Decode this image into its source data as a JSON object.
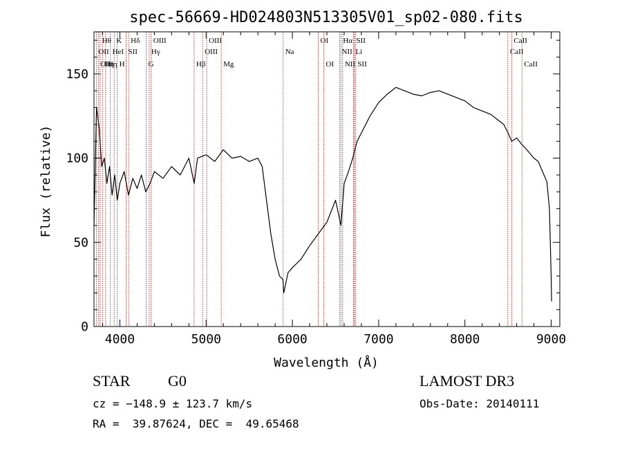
{
  "chart_data": {
    "type": "line",
    "title": "spec-56669-HD024803N513305V01_sp02-080.fits",
    "xlabel": "Wavelength (Å)",
    "ylabel": "Flux (relative)",
    "xlim": [
      3700,
      9100
    ],
    "ylim": [
      0,
      175
    ],
    "xticks": [
      4000,
      5000,
      6000,
      7000,
      8000,
      9000
    ],
    "yticks": [
      0,
      50,
      100,
      150
    ],
    "grid": false,
    "series": [
      {
        "name": "spectrum",
        "x": [
          3700,
          3730,
          3760,
          3790,
          3820,
          3850,
          3880,
          3910,
          3940,
          3970,
          4000,
          4050,
          4100,
          4150,
          4200,
          4250,
          4300,
          4350,
          4400,
          4500,
          4600,
          4700,
          4800,
          4862,
          4900,
          5000,
          5100,
          5200,
          5300,
          5400,
          5500,
          5600,
          5650,
          5700,
          5750,
          5800,
          5850,
          5890,
          5900,
          5950,
          6000,
          6100,
          6200,
          6300,
          6400,
          6500,
          6563,
          6600,
          6650,
          6700,
          6750,
          6800,
          6900,
          7000,
          7100,
          7200,
          7300,
          7400,
          7500,
          7600,
          7700,
          7800,
          7900,
          8000,
          8100,
          8200,
          8300,
          8400,
          8450,
          8500,
          8542,
          8600,
          8662,
          8700,
          8800,
          8850,
          8900,
          8950,
          8980,
          9000,
          9005
        ],
        "y": [
          60,
          130,
          118,
          95,
          100,
          85,
          95,
          78,
          90,
          75,
          85,
          92,
          78,
          88,
          82,
          90,
          80,
          85,
          92,
          88,
          95,
          90,
          100,
          85,
          100,
          102,
          98,
          105,
          100,
          101,
          98,
          100,
          95,
          75,
          55,
          40,
          30,
          28,
          20,
          32,
          35,
          40,
          48,
          55,
          62,
          75,
          60,
          85,
          92,
          100,
          110,
          115,
          125,
          133,
          138,
          142,
          140,
          138,
          137,
          139,
          140,
          138,
          136,
          134,
          130,
          128,
          126,
          122,
          120,
          115,
          110,
          112,
          108,
          106,
          100,
          98,
          92,
          86,
          70,
          30,
          15
        ]
      }
    ],
    "lines": [
      {
        "wavelength": 3727,
        "label": "OII",
        "row": 2
      },
      {
        "wavelength": 3750,
        "label": "OII",
        "row": 3
      },
      {
        "wavelength": 3771,
        "label": "Hθ",
        "row": 1
      },
      {
        "wavelength": 3798,
        "label": "Hη",
        "row": 3
      },
      {
        "wavelength": 3835,
        "label": "Hη",
        "row": 3
      },
      {
        "wavelength": 3889,
        "label": "HeI",
        "row": 2
      },
      {
        "wavelength": 3934,
        "label": "K",
        "row": 1
      },
      {
        "wavelength": 3969,
        "label": "H",
        "row": 3
      },
      {
        "wavelength": 4072,
        "label": "SII",
        "row": 2
      },
      {
        "wavelength": 4102,
        "label": "Hδ",
        "row": 1
      },
      {
        "wavelength": 4305,
        "label": "G",
        "row": 3
      },
      {
        "wavelength": 4340,
        "label": "Hγ",
        "row": 2
      },
      {
        "wavelength": 4363,
        "label": "OIII",
        "row": 1
      },
      {
        "wavelength": 4861,
        "label": "Hβ",
        "row": 3
      },
      {
        "wavelength": 4959,
        "label": "OIII",
        "row": 2
      },
      {
        "wavelength": 5007,
        "label": "OIII",
        "row": 1
      },
      {
        "wavelength": 5175,
        "label": "Mg",
        "row": 3
      },
      {
        "wavelength": 5893,
        "label": "Na",
        "row": 2
      },
      {
        "wavelength": 6300,
        "label": "OI",
        "row": 1
      },
      {
        "wavelength": 6364,
        "label": "OI",
        "row": 3
      },
      {
        "wavelength": 6548,
        "label": "NII",
        "row": 2
      },
      {
        "wavelength": 6563,
        "label": "Hα",
        "row": 1
      },
      {
        "wavelength": 6583,
        "label": "NII",
        "row": 3
      },
      {
        "wavelength": 6707,
        "label": "Li",
        "row": 2
      },
      {
        "wavelength": 6716,
        "label": "SII",
        "row": 1
      },
      {
        "wavelength": 6731,
        "label": "SII",
        "row": 3
      },
      {
        "wavelength": 8498,
        "label": "CaII",
        "row": 2
      },
      {
        "wavelength": 8542,
        "label": "CaII",
        "row": 1
      },
      {
        "wavelength": 8662,
        "label": "CaII",
        "row": 3
      }
    ],
    "colors": {
      "spectrum": "#000000",
      "line_markers": "#cc0000",
      "axes": "#000000"
    }
  },
  "footer": {
    "object_class": "STAR",
    "subclass": "G0",
    "survey": "LAMOST DR3",
    "cz": "cz = −148.9 ± 123.7 km/s",
    "obs_date": "Obs-Date: 20140111",
    "coords": "RA =  39.87624, DEC =  49.65468"
  }
}
